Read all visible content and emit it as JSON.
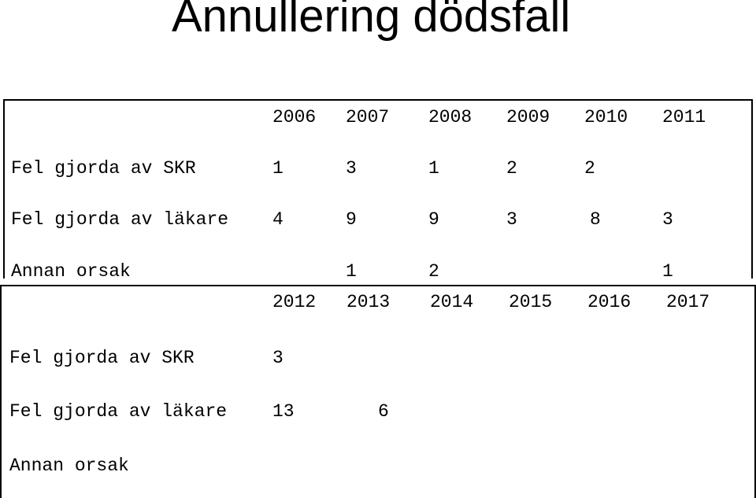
{
  "title": "Annullering dödsfall",
  "tables": [
    {
      "years": [
        "2006",
        "2007",
        "2008",
        "2009",
        "2010",
        "2011"
      ],
      "rows": [
        {
          "label": "Fel gjorda av SKR",
          "values": [
            "1",
            "3",
            "1",
            "2",
            "2",
            ""
          ]
        },
        {
          "label": "Fel gjorda av läkare",
          "values": [
            "4",
            "9",
            "9",
            "3",
            "8",
            "3"
          ]
        },
        {
          "label": "Annan orsak",
          "values": [
            "",
            "1",
            "2",
            "",
            "",
            "1"
          ]
        }
      ]
    },
    {
      "years": [
        "2012",
        "2013",
        "2014",
        "2015",
        "2016",
        "2017"
      ],
      "rows": [
        {
          "label": "Fel gjorda av SKR",
          "values": [
            "3",
            "",
            "",
            "",
            "",
            ""
          ]
        },
        {
          "label": "Fel gjorda av läkare",
          "values": [
            "13",
            "6",
            "",
            "",
            "",
            ""
          ]
        },
        {
          "label": "Annan orsak",
          "values": [
            "",
            "",
            "",
            "",
            "",
            ""
          ]
        }
      ]
    }
  ]
}
